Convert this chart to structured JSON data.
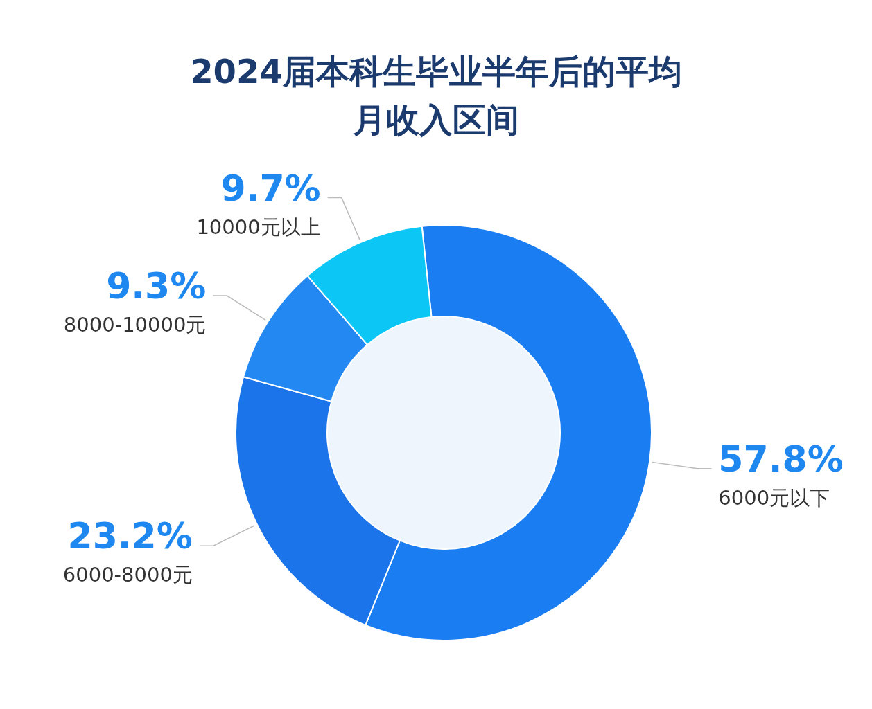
{
  "chart_data": {
    "type": "donut",
    "title": "2024届本科生毕业半年后的平均月收入区间",
    "categories": [
      "6000元以下",
      "6000-8000元",
      "8000-10000元",
      "10000元以上"
    ],
    "values": [
      57.8,
      23.2,
      9.3,
      9.7
    ],
    "value_labels": [
      "57.8%",
      "23.2%",
      "9.3%",
      "9.7%"
    ],
    "colors": [
      "#1a7ef2",
      "#1c74ea",
      "#2388f2",
      "#0cc6f6"
    ]
  }
}
